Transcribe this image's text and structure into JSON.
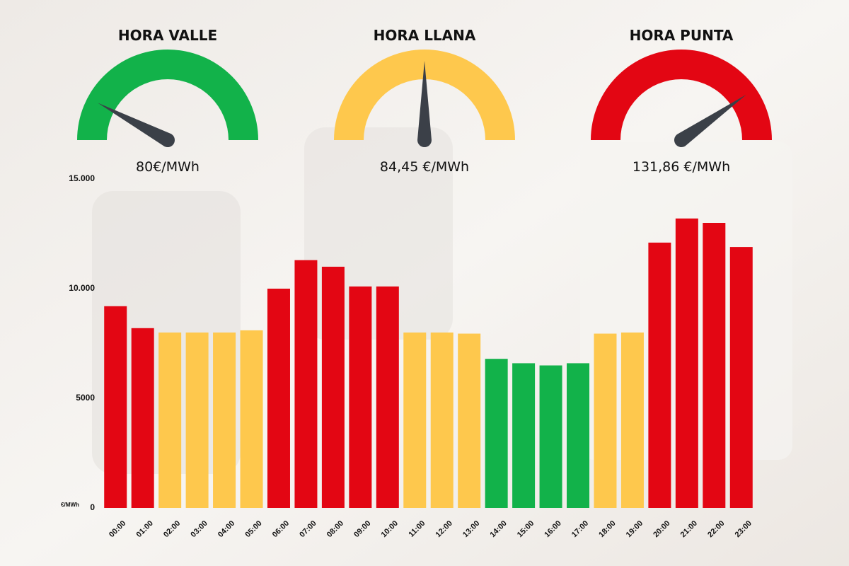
{
  "gauges": [
    {
      "title": "HORA VALLE",
      "value": "80€/MWh",
      "color": "#12b24a"
    },
    {
      "title": "HORA LLANA",
      "value": "84,45 €/MWh",
      "color": "#fec84d"
    },
    {
      "title": "HORA PUNTA",
      "value": "131,86 €/MWh",
      "color": "#e30613"
    }
  ],
  "chart_data": {
    "type": "bar",
    "y_label": "€/MWh",
    "categories": [
      "00:00",
      "01:00",
      "02:00",
      "03:00",
      "04:00",
      "05:00",
      "06:00",
      "07:00",
      "08:00",
      "09:00",
      "10:00",
      "11:00",
      "12:00",
      "13:00",
      "14:00",
      "15:00",
      "16:00",
      "17:00",
      "18:00",
      "19:00",
      "20:00",
      "21:00",
      "22:00",
      "23:00"
    ],
    "values": [
      9200,
      8200,
      8000,
      8000,
      8000,
      8100,
      10000,
      11300,
      11000,
      10100,
      10100,
      8000,
      8000,
      7950,
      6800,
      6600,
      6500,
      6600,
      7950,
      8000,
      12100,
      13200,
      13000,
      11900
    ],
    "colors": [
      "#e30613",
      "#e30613",
      "#fec84d",
      "#fec84d",
      "#fec84d",
      "#fec84d",
      "#e30613",
      "#e30613",
      "#e30613",
      "#e30613",
      "#e30613",
      "#fec84d",
      "#fec84d",
      "#fec84d",
      "#12b24a",
      "#12b24a",
      "#12b24a",
      "#12b24a",
      "#fec84d",
      "#fec84d",
      "#e30613",
      "#e30613",
      "#e30613",
      "#e30613"
    ],
    "ylim": [
      0,
      15000
    ],
    "yticks": [
      {
        "value": 0,
        "label": "0"
      },
      {
        "value": 5000,
        "label": "5000"
      },
      {
        "value": 10000,
        "label": "10.000"
      },
      {
        "value": 15000,
        "label": "15.000"
      }
    ],
    "grid": false
  }
}
